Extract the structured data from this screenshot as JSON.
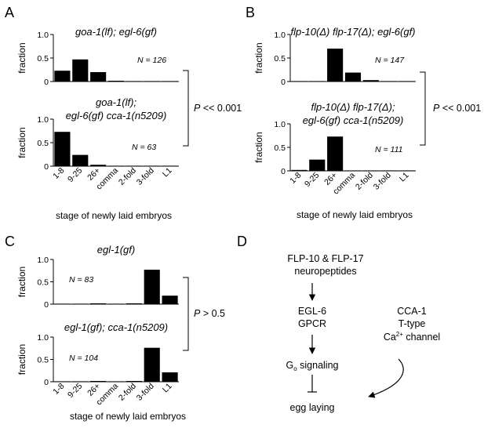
{
  "panels": {
    "A": {
      "letter": "A",
      "p_value": "P << 0.001",
      "p_italic": "P",
      "p_rest": " << 0.001",
      "xlabel": "stage of newly laid embryos"
    },
    "B": {
      "letter": "B",
      "p_value": "P << 0.001",
      "p_italic": "P",
      "p_rest": " << 0.001",
      "xlabel": "stage of newly laid embryos"
    },
    "C": {
      "letter": "C",
      "p_value": "P > 0.5",
      "p_italic": "P",
      "p_rest": " > 0.5",
      "xlabel": "stage of newly laid embryos"
    },
    "D": {
      "letter": "D",
      "nodes": {
        "flp_line1": "FLP-10 & FLP-17",
        "flp_line2": "neuropeptides",
        "egl6_line1": "EGL-6",
        "egl6_line2": "GPCR",
        "go_main": "G",
        "go_sub": "o",
        "go_rest": " signaling",
        "egg": "egg laying",
        "cca_line1": "CCA-1",
        "cca_line2": "T-type",
        "cca_ca": "Ca",
        "cca_sup": "2+",
        "cca_rest": " channel"
      }
    }
  },
  "chart_data": [
    {
      "type": "bar",
      "panel": "A",
      "position": "top",
      "title": "goa-1(lf); egl-6(gf)",
      "categories": [
        "1-8",
        "9-25",
        "26+",
        "comma",
        "2-fold",
        "3-fold",
        "L1"
      ],
      "values": [
        0.23,
        0.47,
        0.2,
        0.01,
        0.0,
        0.0,
        0.0
      ],
      "ylabel": "fraction",
      "ylim": [
        0,
        1.0
      ],
      "yticks": [
        "0",
        "0.5",
        "1.0"
      ],
      "n_label": "N = 126"
    },
    {
      "type": "bar",
      "panel": "A",
      "position": "bottom",
      "title": [
        "goa-1(lf);",
        "egl-6(gf) cca-1(n5209)"
      ],
      "categories": [
        "1-8",
        "9-25",
        "26+",
        "comma",
        "2-fold",
        "3-fold",
        "L1"
      ],
      "values": [
        0.73,
        0.24,
        0.03,
        0.0,
        0.0,
        0.0,
        0.0
      ],
      "ylabel": "fraction",
      "ylim": [
        0,
        1.0
      ],
      "yticks": [
        "0",
        "0.5",
        "1.0"
      ],
      "n_label": "N = 63"
    },
    {
      "type": "bar",
      "panel": "B",
      "position": "top",
      "title": "flp-10(Δ) flp-17(Δ); egl-6(gf)",
      "categories": [
        "1-8",
        "9-25",
        "26+",
        "comma",
        "2-fold",
        "3-fold",
        "L1"
      ],
      "values": [
        0.0,
        0.0,
        0.7,
        0.19,
        0.03,
        0.0,
        0.0
      ],
      "ylabel": "fraction",
      "ylim": [
        0,
        1.0
      ],
      "yticks": [
        "0",
        "0.5",
        "1.0"
      ],
      "n_label": "N = 147"
    },
    {
      "type": "bar",
      "panel": "B",
      "position": "bottom",
      "title": [
        "flp-10(Δ) flp-17(Δ);",
        "egl-6(gf) cca-1(n5209)"
      ],
      "categories": [
        "1-8",
        "9-25",
        "26+",
        "comma",
        "2-fold",
        "3-fold",
        "L1"
      ],
      "values": [
        0.02,
        0.24,
        0.73,
        0.0,
        0.0,
        0.0,
        0.0
      ],
      "ylabel": "fraction",
      "ylim": [
        0,
        1.0
      ],
      "yticks": [
        "0",
        "0.5",
        "1.0"
      ],
      "n_label": "N = 111"
    },
    {
      "type": "bar",
      "panel": "C",
      "position": "top",
      "title": "egl-1(gf)",
      "categories": [
        "1-8",
        "9-25",
        "26+",
        "comma",
        "2-fold",
        "3-fold",
        "L1"
      ],
      "values": [
        0.0,
        0.0,
        0.01,
        0.0,
        0.01,
        0.77,
        0.19
      ],
      "ylabel": "fraction",
      "ylim": [
        0,
        1.0
      ],
      "yticks": [
        "0",
        "0.5",
        "1.0"
      ],
      "n_label": "N = 83"
    },
    {
      "type": "bar",
      "panel": "C",
      "position": "bottom",
      "title": "egl-1(gf); cca-1(n5209)",
      "categories": [
        "1-8",
        "9-25",
        "26+",
        "comma",
        "2-fold",
        "3-fold",
        "L1"
      ],
      "values": [
        0.0,
        0.0,
        0.01,
        0.0,
        0.01,
        0.76,
        0.21
      ],
      "ylabel": "fraction",
      "ylim": [
        0,
        1.0
      ],
      "yticks": [
        "0",
        "0.5",
        "1.0"
      ],
      "n_label": "N = 104"
    }
  ]
}
